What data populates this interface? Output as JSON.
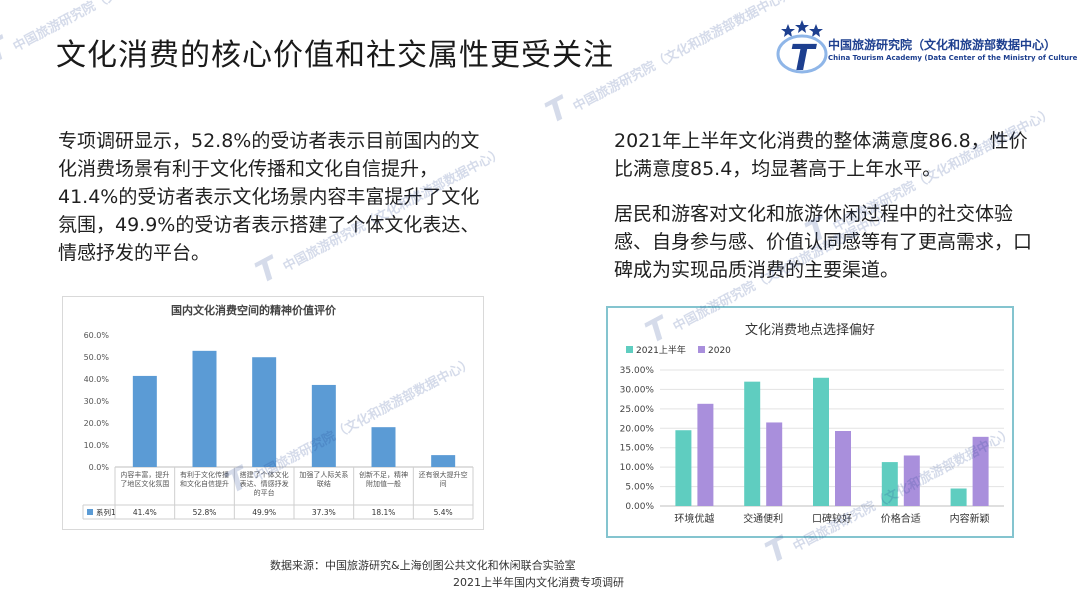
{
  "page": {
    "title": "文化消费的核心价值和社交属性更受关注",
    "logo": {
      "name_cn": "中国旅游研究院（文化和旅游部数据中心）",
      "name_en": "China Tourism Academy (Data Center of the Ministry of Culture and Tourism)",
      "mark": "T"
    },
    "left_paragraph": "专项调研显示，52.8%的受访者表示目前国内的文化消费场景有利于文化传播和文化自信提升，41.4%的受访者表示文化场景内容丰富提升了文化氛围，49.9%的受访者表示搭建了个体文化表达、情感抒发的平台。",
    "right_paragraph_1": "2021年上半年文化消费的整体满意度86.8，性价比满意度85.4，均显著高于上年水平。",
    "right_paragraph_2": "居民和游客对文化和旅游休闲过程中的社交体验感、自身参与感、价值认同感等有了更高需求，口碑成为实现品质消费的主要渠道。",
    "source_line_1": "数据来源：中国旅游研究&上海创图公共文化和休闲联合实验室",
    "source_line_2": "2021上半年国内文化消费专项调研",
    "watermark_text": "中国旅游研究院（文化和旅游部数据中心）",
    "colors": {
      "left_bar": "#5b9bd5",
      "series_2021": "#5fcdc0",
      "series_2020": "#a98fdc",
      "accent": "#1d3f8f"
    }
  },
  "chart_data": [
    {
      "type": "bar",
      "title": "国内文化消费空间的精神价值评价",
      "categories": [
        "内容丰富，提升了地区文化氛围",
        "有利于文化传播和文化自信提升",
        "搭建了个体文化表达、情感抒发的平台",
        "加强了人际关系联结",
        "创新不足，精神附加值一般",
        "还有很大提升空间"
      ],
      "series": [
        {
          "name": "系列1",
          "values": [
            41.4,
            52.8,
            49.9,
            37.3,
            18.1,
            5.4
          ]
        }
      ],
      "value_labels": [
        "41.4%",
        "52.8%",
        "49.9%",
        "37.3%",
        "18.1%",
        "5.4%"
      ],
      "ylim": [
        0,
        60
      ],
      "yticks": [
        "0.0%",
        "10.0%",
        "20.0%",
        "30.0%",
        "40.0%",
        "50.0%",
        "60.0%"
      ],
      "grid": false,
      "legend": "data-table"
    },
    {
      "type": "bar",
      "title": "文化消费地点选择偏好",
      "categories": [
        "环境优越",
        "交通便利",
        "口碑较好",
        "价格合适",
        "内容新颖"
      ],
      "series": [
        {
          "name": "2021上半年",
          "values": [
            19.5,
            32,
            33,
            11.3,
            4.5
          ]
        },
        {
          "name": "2020",
          "values": [
            26.3,
            21.5,
            19.3,
            13,
            17.8
          ]
        }
      ],
      "ylim": [
        0,
        35
      ],
      "yticks": [
        "0.00%",
        "5.00%",
        "10.00%",
        "15.00%",
        "20.00%",
        "25.00%",
        "30.00%",
        "35.00%"
      ],
      "grid": true,
      "legend": "top-left"
    }
  ]
}
